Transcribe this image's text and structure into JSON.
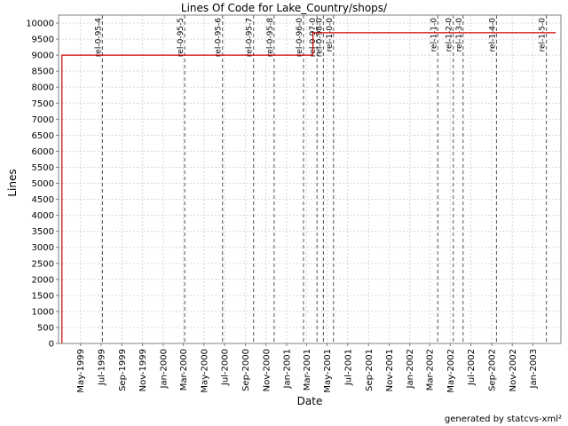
{
  "chart_data": {
    "type": "line",
    "title": "Lines Of Code for Lake_Country/shops/",
    "xlabel": "Date",
    "ylabel": "Lines",
    "ylim": [
      0,
      10250
    ],
    "xlim": [
      "1999-02-25",
      "2003-03-25"
    ],
    "grid": true,
    "line_color": "#cc0000",
    "y_ticks": [
      0,
      500,
      1000,
      1500,
      2000,
      2500,
      3000,
      3500,
      4000,
      4500,
      5000,
      5500,
      6000,
      6500,
      7000,
      7500,
      8000,
      8500,
      9000,
      9500,
      10000
    ],
    "x_ticks": [
      {
        "date": "1999-05-01",
        "label": "May-1999"
      },
      {
        "date": "1999-07-01",
        "label": "Jul-1999"
      },
      {
        "date": "1999-09-01",
        "label": "Sep-1999"
      },
      {
        "date": "1999-11-01",
        "label": "Nov-1999"
      },
      {
        "date": "2000-01-01",
        "label": "Jan-2000"
      },
      {
        "date": "2000-03-01",
        "label": "Mar-2000"
      },
      {
        "date": "2000-05-01",
        "label": "May-2000"
      },
      {
        "date": "2000-07-01",
        "label": "Jul-2000"
      },
      {
        "date": "2000-09-01",
        "label": "Sep-2000"
      },
      {
        "date": "2000-11-01",
        "label": "Nov-2000"
      },
      {
        "date": "2001-01-01",
        "label": "Jan-2001"
      },
      {
        "date": "2001-03-01",
        "label": "Mar-2001"
      },
      {
        "date": "2001-05-01",
        "label": "May-2001"
      },
      {
        "date": "2001-07-01",
        "label": "Jul-2001"
      },
      {
        "date": "2001-09-01",
        "label": "Sep-2001"
      },
      {
        "date": "2001-11-01",
        "label": "Nov-2001"
      },
      {
        "date": "2002-01-01",
        "label": "Jan-2002"
      },
      {
        "date": "2002-03-01",
        "label": "Mar-2002"
      },
      {
        "date": "2002-05-01",
        "label": "May-2002"
      },
      {
        "date": "2002-07-01",
        "label": "Jul-2002"
      },
      {
        "date": "2002-09-01",
        "label": "Sep-2002"
      },
      {
        "date": "2002-11-01",
        "label": "Nov-2002"
      },
      {
        "date": "2003-01-01",
        "label": "Jan-2003"
      }
    ],
    "series": [
      {
        "points": [
          {
            "x": "1999-03-07",
            "y": 0
          },
          {
            "x": "1999-03-07",
            "y": 9000
          },
          {
            "x": "2001-03-20",
            "y": 9000
          },
          {
            "x": "2001-03-20",
            "y": 9700
          },
          {
            "x": "2003-03-10",
            "y": 9700
          }
        ]
      }
    ],
    "tags": [
      {
        "label": "rel-0-95-4",
        "date": "1999-07-05"
      },
      {
        "label": "rel-0-95-5",
        "date": "2000-03-05"
      },
      {
        "label": "rel-0-95-6",
        "date": "2000-06-25"
      },
      {
        "label": "rel-0-95-7",
        "date": "2000-09-25"
      },
      {
        "label": "rel-0-95-8",
        "date": "2000-11-25"
      },
      {
        "label": "rel-0-96-0",
        "date": "2001-02-20"
      },
      {
        "label": "rel-0-97-0",
        "date": "2001-04-01"
      },
      {
        "label": "rel-0-98-0",
        "date": "2001-04-20"
      },
      {
        "label": "rel-1-0-0",
        "date": "2001-05-20"
      },
      {
        "label": "rel-1-1-0",
        "date": "2002-03-25"
      },
      {
        "label": "rel-1-2-0",
        "date": "2002-05-10"
      },
      {
        "label": "rel-1-3-0",
        "date": "2002-06-08"
      },
      {
        "label": "rel-1-4-0",
        "date": "2002-09-15"
      },
      {
        "label": "rel-1-5-0",
        "date": "2003-02-10"
      }
    ]
  },
  "footer": "generated by statcvs-xml²"
}
